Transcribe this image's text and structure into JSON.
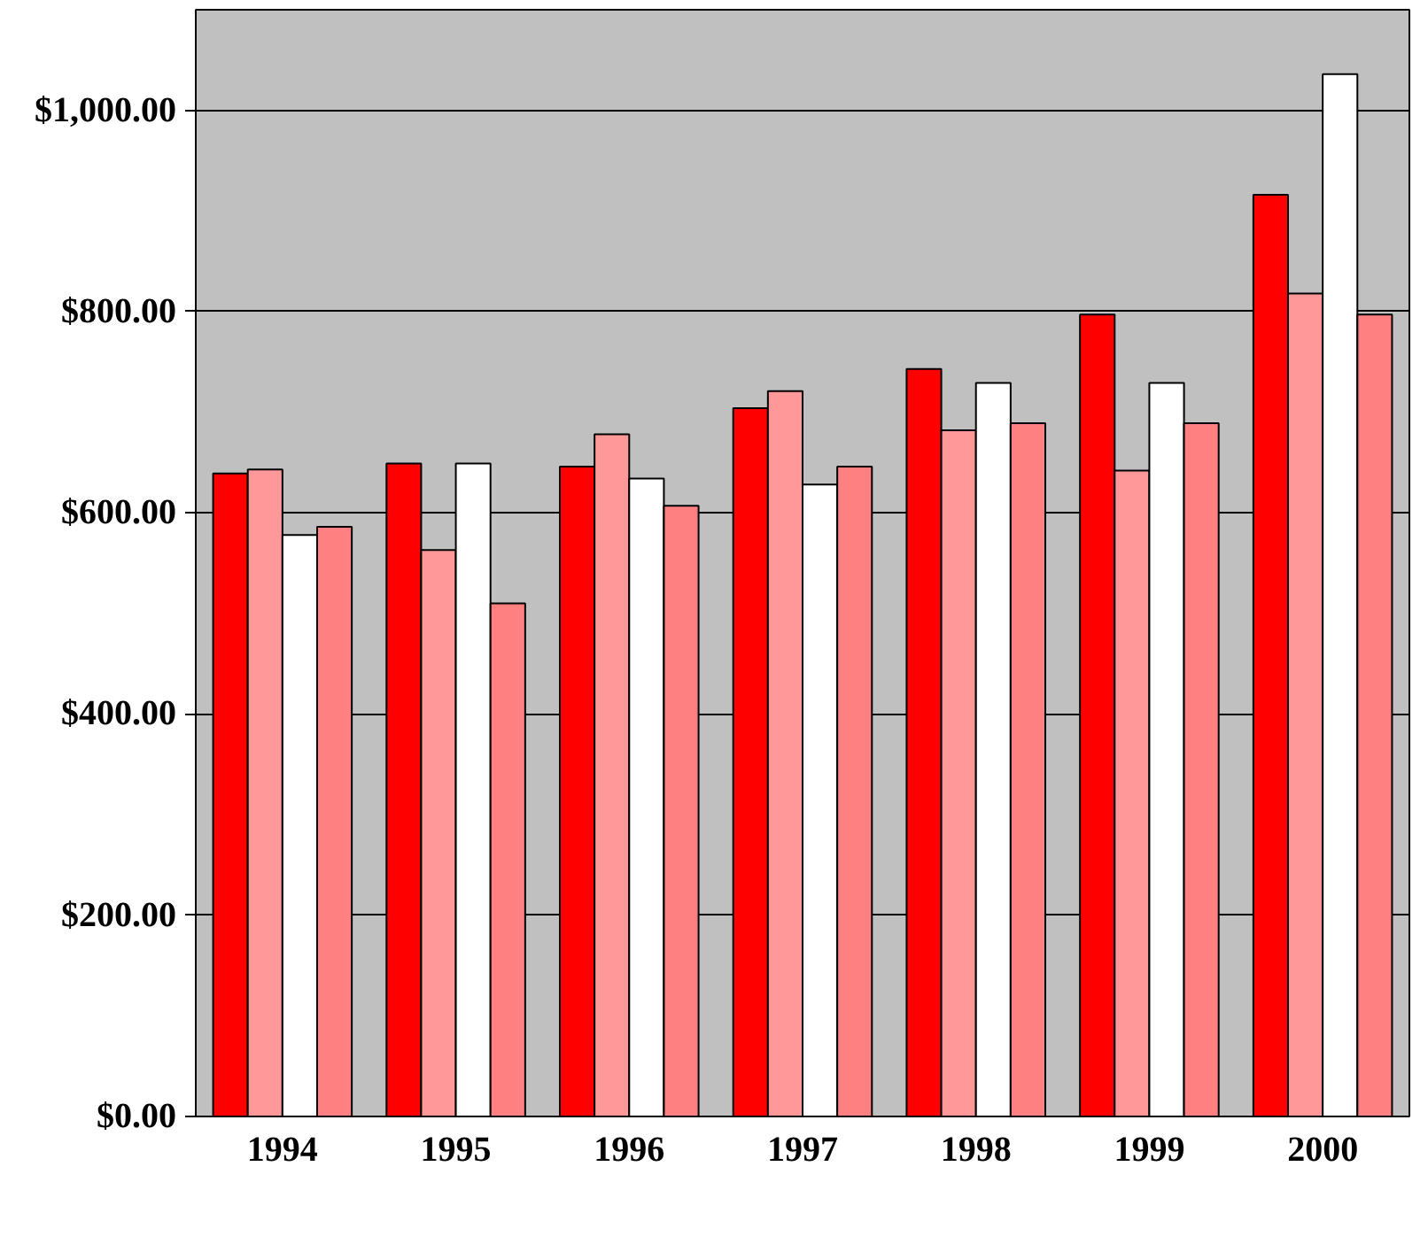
{
  "chart_data": {
    "type": "bar",
    "categories": [
      "1994",
      "1995",
      "1996",
      "1997",
      "1998",
      "1999",
      "2000"
    ],
    "series": [
      {
        "color": "#ff0000",
        "values": [
          639,
          649,
          646,
          704,
          743,
          797,
          916
        ]
      },
      {
        "color": "#ff9999",
        "values": [
          643,
          563,
          678,
          721,
          682,
          642,
          818
        ]
      },
      {
        "color": "#ffffff",
        "values": [
          578,
          649,
          634,
          628,
          729,
          729,
          1036
        ]
      },
      {
        "color": "#ff8080",
        "values": [
          586,
          510,
          607,
          646,
          689,
          689,
          797
        ]
      }
    ],
    "ylim": [
      0,
      1100
    ],
    "yticks": [
      {
        "value": 0,
        "label": "$0.00"
      },
      {
        "value": 200,
        "label": "$200.00"
      },
      {
        "value": 400,
        "label": "$400.00"
      },
      {
        "value": 600,
        "label": "$600.00"
      },
      {
        "value": 800,
        "label": "$800.00"
      },
      {
        "value": 1000,
        "label": "$1,000.00"
      }
    ],
    "grid": "y"
  }
}
